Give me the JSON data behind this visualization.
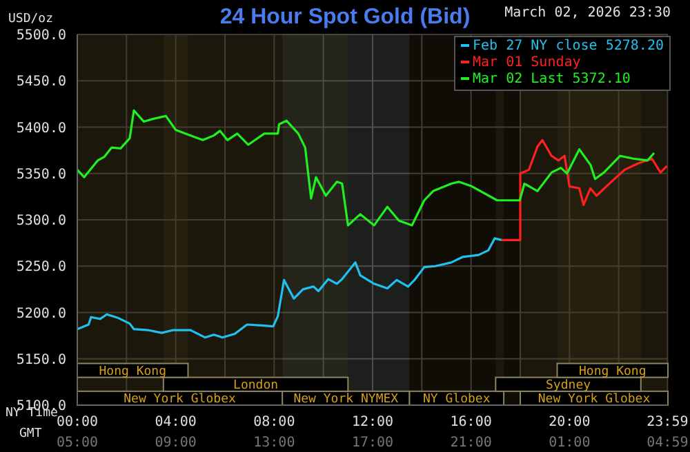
{
  "chart_data": {
    "type": "line",
    "title": "24 Hour Spot Gold (Bid)",
    "subtitle": "March 02, 2026 23:30",
    "ylabel": "USD/oz",
    "xlabel": "NY Time",
    "x2label": "GMT",
    "xlim": [
      0,
      24
    ],
    "xticks": [
      {
        "value": 0,
        "label": "00:00"
      },
      {
        "value": 2,
        "label": null
      },
      {
        "value": 4,
        "label": "04:00"
      },
      {
        "value": 6,
        "label": null
      },
      {
        "value": 8,
        "label": "08:00"
      },
      {
        "value": 10,
        "label": null
      },
      {
        "value": 12,
        "label": "12:00"
      },
      {
        "value": 14,
        "label": null
      },
      {
        "value": 16,
        "label": "16:00"
      },
      {
        "value": 18,
        "label": null
      },
      {
        "value": 20,
        "label": "20:00"
      },
      {
        "value": 22,
        "label": null
      },
      {
        "value": 23.983,
        "label": "23:59"
      }
    ],
    "x2lim": [
      "2026-03-02T05:00",
      "2026-03-03T05:00"
    ],
    "x2ticks": [
      {
        "value": "2026-03-02T05:00",
        "label": "05:00"
      },
      {
        "value": "2026-03-02T09:00",
        "label": "09:00"
      },
      {
        "value": "2026-03-02T13:00",
        "label": "13:00"
      },
      {
        "value": "2026-03-02T17:00",
        "label": "17:00"
      },
      {
        "value": "2026-03-02T21:00",
        "label": "21:00"
      },
      {
        "value": "2026-03-03T01:00",
        "label": "01:00"
      },
      {
        "value": "2026-03-03T04:59",
        "label": "04:59"
      }
    ],
    "ylim": [
      5100,
      5500
    ],
    "yticks": [
      {
        "value": 5100,
        "label": "5100.0"
      },
      {
        "value": 5150,
        "label": "5150.0"
      },
      {
        "value": 5200,
        "label": "5200.0"
      },
      {
        "value": 5250,
        "label": "5250.0"
      },
      {
        "value": 5300,
        "label": "5300.0"
      },
      {
        "value": 5350,
        "label": "5350.0"
      },
      {
        "value": 5400,
        "label": "5400.0"
      },
      {
        "value": 5450,
        "label": "5450.0"
      },
      {
        "value": 5500,
        "label": "5500.0"
      }
    ],
    "grid": true,
    "legend": "top right",
    "marker": "none",
    "line_style": "solid",
    "bands": [
      {
        "axis": "x",
        "from": 8.33,
        "to": 13.5,
        "label": "New York NYMEX",
        "color": "#8a9a8a"
      },
      {
        "axis": "x",
        "from": 0,
        "to": 8.33,
        "label": "New York Globex",
        "color": "#4a4020"
      },
      {
        "axis": "x",
        "from": 3.5,
        "to": 11,
        "label": "London",
        "color": "#4a4020"
      },
      {
        "axis": "x",
        "from": 0,
        "to": 4.5,
        "label": "Hong Kong",
        "color": "#4a4020"
      },
      {
        "axis": "x",
        "from": 13.5,
        "to": 17.33,
        "label": "NY Globex",
        "color": "#4a4020"
      },
      {
        "axis": "x",
        "from": 18,
        "to": 24,
        "label": "New York Globex",
        "color": "#4a4020"
      },
      {
        "axis": "x",
        "from": 17,
        "to": 22.9,
        "label": "Sydney",
        "color": "#4a4020"
      },
      {
        "axis": "x",
        "from": 19.5,
        "to": 24,
        "label": "Hong Kong",
        "color": "#4a4020"
      }
    ],
    "series": [
      {
        "name": "Feb 27 NY close 5278.20",
        "color": "#20c0f0",
        "x": [
          0,
          0.46,
          0.56,
          0.93,
          1.2,
          1.67,
          2.13,
          2.3,
          2.87,
          3.43,
          3.9,
          4.6,
          5.2,
          5.55,
          5.9,
          6.4,
          6.9,
          7.5,
          7.96,
          8.15,
          8.4,
          8.8,
          9.17,
          9.6,
          9.8,
          10.2,
          10.55,
          10.76,
          11.3,
          11.5,
          12.06,
          12.6,
          12.98,
          13.44,
          13.7,
          14.1,
          14.55,
          15.2,
          15.67,
          16.3,
          16.7,
          16.96,
          17.24
        ],
        "values": [
          5182,
          5187,
          5195,
          5193,
          5198,
          5194,
          5188,
          5182,
          5181,
          5178,
          5181,
          5181,
          5173,
          5176,
          5173,
          5177,
          5187,
          5186,
          5185,
          5196,
          5235,
          5215,
          5225,
          5228,
          5223,
          5236,
          5231,
          5236,
          5254,
          5240,
          5231,
          5226,
          5235,
          5228,
          5235,
          5249,
          5250,
          5254,
          5260,
          5262,
          5267,
          5280,
          5278.2
        ]
      },
      {
        "name": "Mar 01 Sunday",
        "color": "#ff2020",
        "x": [
          17.24,
          18,
          18,
          18.35,
          18.7,
          18.9,
          19.27,
          19.55,
          19.8,
          20,
          20.4,
          20.57,
          20.85,
          21.1,
          21.7,
          22.24,
          22.8,
          23.35,
          23.7,
          23.96
        ],
        "values": [
          5278.2,
          5278.2,
          5350,
          5354,
          5379,
          5386,
          5369,
          5364,
          5369,
          5336,
          5334,
          5316,
          5334,
          5326,
          5341,
          5354,
          5361,
          5366,
          5351,
          5358
        ]
      },
      {
        "name": "Mar 02 Last 5372.10",
        "color": "#20f020",
        "x": [
          0,
          0.28,
          0.83,
          1.1,
          1.4,
          1.76,
          2.13,
          2.3,
          2.7,
          3.1,
          3.6,
          4,
          4.4,
          5.1,
          5.55,
          5.8,
          6.1,
          6.5,
          6.95,
          7.6,
          8.15,
          8.2,
          8.5,
          8.98,
          9.26,
          9.5,
          9.7,
          10.1,
          10.55,
          10.76,
          11,
          11.5,
          12.06,
          12.6,
          13.07,
          13.6,
          14.1,
          14.46,
          15.2,
          15.5,
          16.04,
          17.06,
          17.98,
          18.17,
          18.7,
          19.27,
          19.65,
          19.9,
          20.4,
          20.86,
          21.04,
          21.4,
          22.06,
          22.6,
          23.17,
          23.44
        ],
        "values": [
          5354,
          5346,
          5364,
          5368,
          5378,
          5377,
          5388,
          5418,
          5406,
          5409,
          5412,
          5397,
          5393,
          5386,
          5391,
          5396,
          5386,
          5393,
          5381,
          5393,
          5393,
          5403,
          5407,
          5393,
          5378,
          5323,
          5346,
          5326,
          5341,
          5339,
          5294,
          5306,
          5294,
          5314,
          5299,
          5294,
          5321,
          5331,
          5339,
          5341,
          5336,
          5321,
          5321,
          5339,
          5331,
          5351,
          5356,
          5350,
          5376,
          5359,
          5344,
          5351,
          5369,
          5366,
          5364,
          5372.1
        ]
      }
    ]
  }
}
